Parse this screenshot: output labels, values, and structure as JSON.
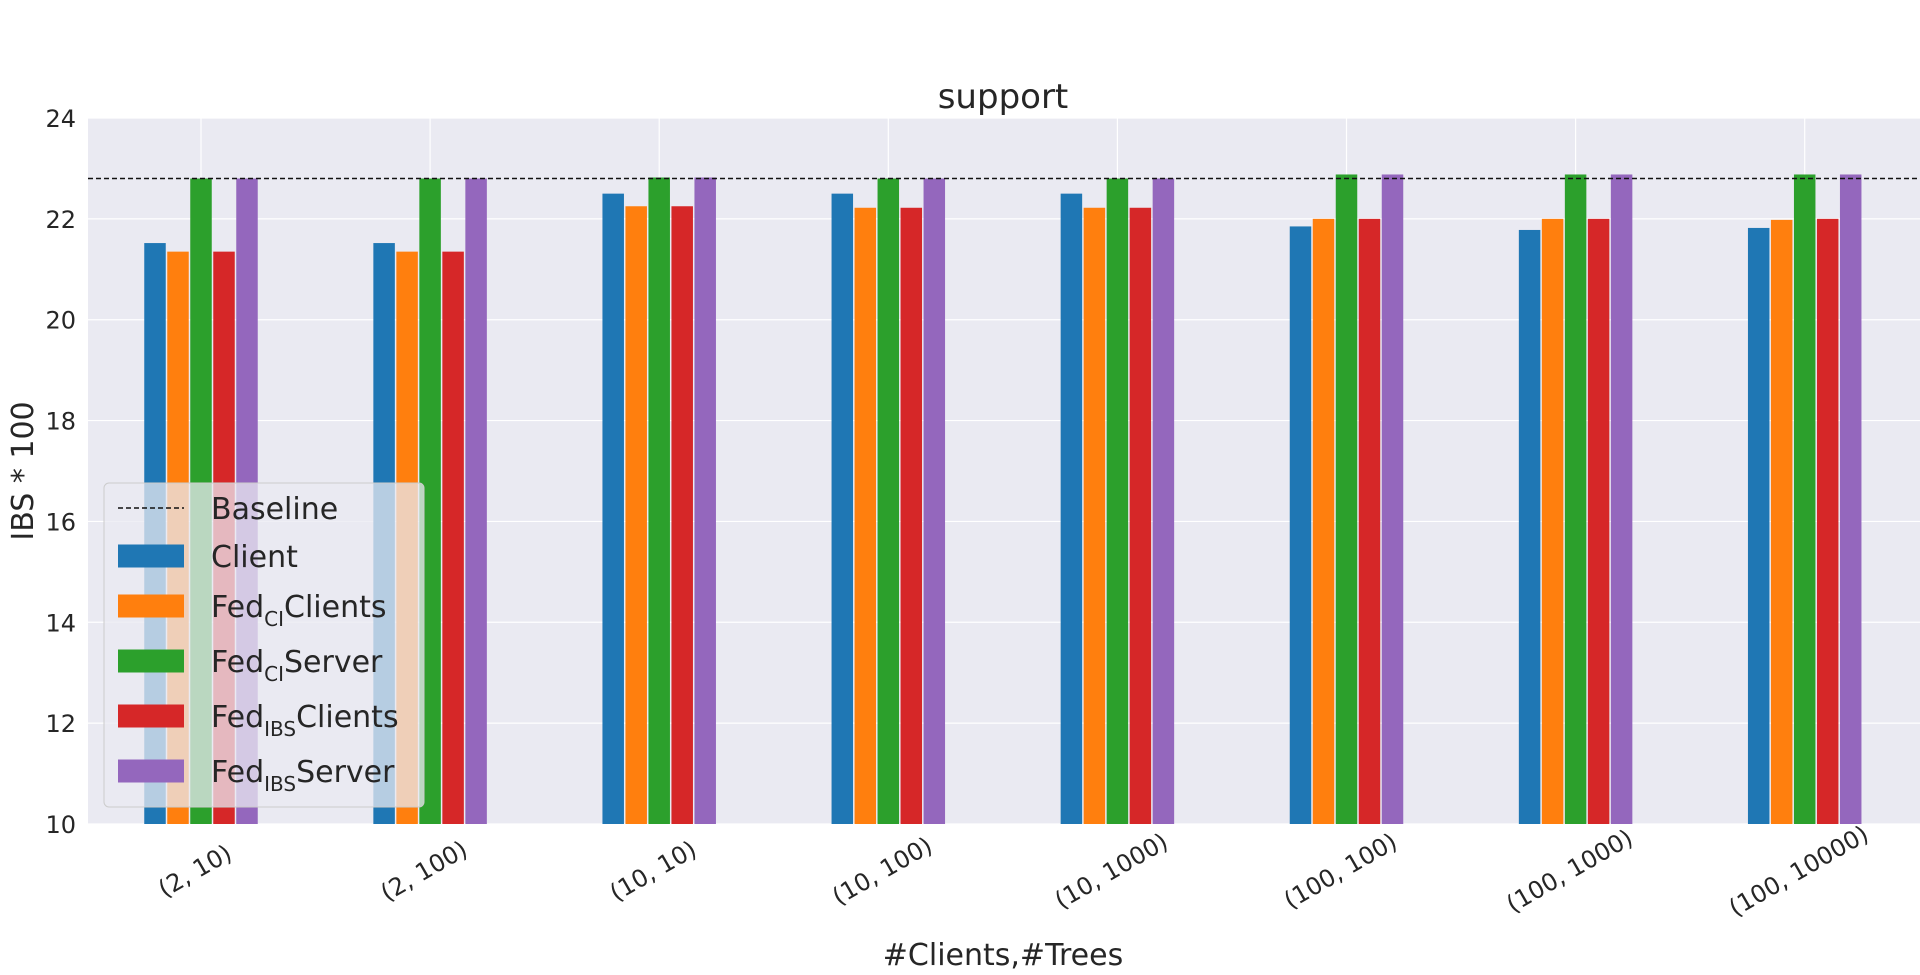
{
  "chart_data": {
    "type": "bar",
    "title": "support",
    "xlabel": "#Clients,#Trees",
    "ylabel": "IBS * 100",
    "ylim": [
      10,
      24
    ],
    "yticks": [
      10,
      12,
      14,
      16,
      18,
      20,
      22,
      24
    ],
    "grid": true,
    "legend_position": "lower-left",
    "categories": [
      "(2, 10)",
      "(2, 100)",
      "(10, 10)",
      "(10, 100)",
      "(10, 1000)",
      "(100, 100)",
      "(100, 1000)",
      "(100, 10000)"
    ],
    "baseline": {
      "name": "Baseline",
      "value": 22.8
    },
    "series": [
      {
        "name": "Client",
        "name_main": "Client",
        "name_sub": "",
        "name_suffix": "",
        "color": "#1f77b4",
        "values": [
          21.52,
          21.52,
          22.5,
          22.5,
          22.5,
          21.85,
          21.78,
          21.82
        ]
      },
      {
        "name": "FedCIClients",
        "name_main": "Fed",
        "name_sub": "CI",
        "name_suffix": "Clients",
        "color": "#ff7f0e",
        "values": [
          21.35,
          21.35,
          22.25,
          22.22,
          22.22,
          22.0,
          22.0,
          21.98
        ]
      },
      {
        "name": "FedCIServer",
        "name_main": "Fed",
        "name_sub": "CI",
        "name_suffix": "Server",
        "color": "#2ca02c",
        "values": [
          22.8,
          22.8,
          22.82,
          22.8,
          22.8,
          22.88,
          22.88,
          22.88
        ]
      },
      {
        "name": "FedIBSClients",
        "name_main": "Fed",
        "name_sub": "IBS",
        "name_suffix": "Clients",
        "color": "#d62728",
        "values": [
          21.35,
          21.35,
          22.25,
          22.22,
          22.22,
          22.0,
          22.0,
          22.0
        ]
      },
      {
        "name": "FedIBSServer",
        "name_main": "Fed",
        "name_sub": "IBS",
        "name_suffix": "Server",
        "color": "#9467bd",
        "values": [
          22.8,
          22.8,
          22.82,
          22.8,
          22.8,
          22.88,
          22.88,
          22.88
        ]
      }
    ]
  }
}
